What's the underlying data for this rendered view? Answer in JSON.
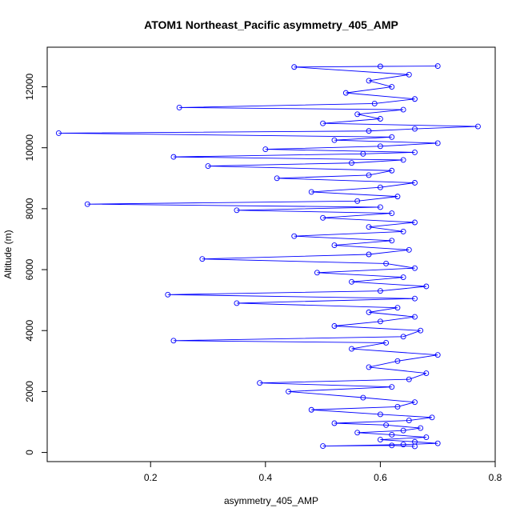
{
  "chart_data": {
    "type": "scatter",
    "title": "ATOM1 Northeast_Pacific asymmetry_405_AMP",
    "xlabel": "asymmetry_405_AMP",
    "ylabel": "Altitude (m)",
    "xlim": [
      0.02,
      0.8
    ],
    "ylim": [
      -300,
      13300
    ],
    "x_ticks": [
      0.2,
      0.4,
      0.6,
      0.8
    ],
    "y_ticks": [
      0,
      2000,
      4000,
      6000,
      8000,
      10000,
      12000
    ],
    "grid": false,
    "legend": "none",
    "series": [
      {
        "marker": "open-circle",
        "line": true,
        "color": "#0000ff",
        "points": [
          [
            0.66,
            200
          ],
          [
            0.62,
            230
          ],
          [
            0.5,
            210
          ],
          [
            0.64,
            260
          ],
          [
            0.7,
            300
          ],
          [
            0.66,
            350
          ],
          [
            0.6,
            420
          ],
          [
            0.68,
            500
          ],
          [
            0.62,
            580
          ],
          [
            0.56,
            650
          ],
          [
            0.64,
            720
          ],
          [
            0.67,
            800
          ],
          [
            0.61,
            900
          ],
          [
            0.52,
            960
          ],
          [
            0.65,
            1050
          ],
          [
            0.69,
            1150
          ],
          [
            0.6,
            1250
          ],
          [
            0.48,
            1400
          ],
          [
            0.63,
            1500
          ],
          [
            0.66,
            1650
          ],
          [
            0.57,
            1800
          ],
          [
            0.44,
            2000
          ],
          [
            0.62,
            2150
          ],
          [
            0.39,
            2280
          ],
          [
            0.65,
            2400
          ],
          [
            0.68,
            2600
          ],
          [
            0.58,
            2800
          ],
          [
            0.63,
            3000
          ],
          [
            0.7,
            3200
          ],
          [
            0.55,
            3400
          ],
          [
            0.61,
            3600
          ],
          [
            0.24,
            3670
          ],
          [
            0.64,
            3800
          ],
          [
            0.67,
            4000
          ],
          [
            0.52,
            4150
          ],
          [
            0.6,
            4300
          ],
          [
            0.66,
            4450
          ],
          [
            0.58,
            4600
          ],
          [
            0.63,
            4750
          ],
          [
            0.35,
            4900
          ],
          [
            0.66,
            5050
          ],
          [
            0.23,
            5180
          ],
          [
            0.6,
            5300
          ],
          [
            0.68,
            5450
          ],
          [
            0.55,
            5600
          ],
          [
            0.64,
            5750
          ],
          [
            0.49,
            5900
          ],
          [
            0.66,
            6050
          ],
          [
            0.61,
            6200
          ],
          [
            0.29,
            6350
          ],
          [
            0.58,
            6500
          ],
          [
            0.65,
            6650
          ],
          [
            0.52,
            6800
          ],
          [
            0.62,
            6950
          ],
          [
            0.45,
            7100
          ],
          [
            0.64,
            7250
          ],
          [
            0.58,
            7400
          ],
          [
            0.66,
            7550
          ],
          [
            0.5,
            7700
          ],
          [
            0.62,
            7850
          ],
          [
            0.35,
            7950
          ],
          [
            0.6,
            8050
          ],
          [
            0.09,
            8150
          ],
          [
            0.56,
            8250
          ],
          [
            0.63,
            8400
          ],
          [
            0.48,
            8550
          ],
          [
            0.6,
            8700
          ],
          [
            0.66,
            8850
          ],
          [
            0.42,
            9000
          ],
          [
            0.58,
            9100
          ],
          [
            0.62,
            9250
          ],
          [
            0.3,
            9400
          ],
          [
            0.55,
            9500
          ],
          [
            0.64,
            9600
          ],
          [
            0.24,
            9700
          ],
          [
            0.57,
            9800
          ],
          [
            0.66,
            9850
          ],
          [
            0.4,
            9950
          ],
          [
            0.6,
            10050
          ],
          [
            0.7,
            10150
          ],
          [
            0.52,
            10250
          ],
          [
            0.62,
            10350
          ],
          [
            0.04,
            10480
          ],
          [
            0.58,
            10550
          ],
          [
            0.66,
            10620
          ],
          [
            0.77,
            10700
          ],
          [
            0.5,
            10800
          ],
          [
            0.6,
            10950
          ],
          [
            0.56,
            11100
          ],
          [
            0.64,
            11250
          ],
          [
            0.25,
            11320
          ],
          [
            0.59,
            11450
          ],
          [
            0.66,
            11600
          ],
          [
            0.54,
            11800
          ],
          [
            0.62,
            12000
          ],
          [
            0.58,
            12200
          ],
          [
            0.65,
            12400
          ],
          [
            0.45,
            12650
          ],
          [
            0.6,
            12670
          ],
          [
            0.7,
            12680
          ]
        ]
      }
    ]
  }
}
